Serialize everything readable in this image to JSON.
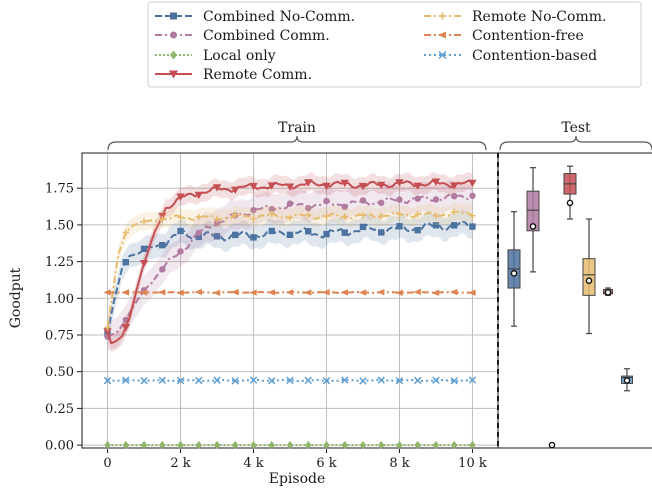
{
  "chart_data": {
    "type": "line",
    "xlabel": "Episode",
    "ylabel": "Goodput",
    "xlim": [
      -700,
      10700
    ],
    "ylim": [
      -0.02,
      1.99
    ],
    "xticks": [
      {
        "value": 0,
        "label": "0"
      },
      {
        "value": 2000,
        "label": "2 k"
      },
      {
        "value": 4000,
        "label": "4 k"
      },
      {
        "value": 6000,
        "label": "6 k"
      },
      {
        "value": 8000,
        "label": "8 k"
      },
      {
        "value": 10000,
        "label": "10 k"
      }
    ],
    "yticks": [
      {
        "value": 0,
        "label": "0.00"
      },
      {
        "value": 0.25,
        "label": "0.25"
      },
      {
        "value": 0.5,
        "label": "0.50"
      },
      {
        "value": 0.75,
        "label": "0.75"
      },
      {
        "value": 1.0,
        "label": "1.00"
      },
      {
        "value": 1.25,
        "label": "1.25"
      },
      {
        "value": 1.5,
        "label": "1.50"
      },
      {
        "value": 1.75,
        "label": "1.75"
      }
    ],
    "grid": true,
    "legend_position": "top-center",
    "brackets": [
      {
        "label": "Train"
      },
      {
        "label": "Test"
      }
    ],
    "series": [
      {
        "name": "Combined No-Comm.",
        "color": "#4c72a0",
        "dash": "7,3",
        "marker": "square",
        "x": [
          0,
          200,
          400,
          600,
          800,
          1000,
          1500,
          2000,
          3000,
          4000,
          5000,
          6000,
          7000,
          8000,
          9000,
          10000
        ],
        "y": [
          0.76,
          1.0,
          1.2,
          1.3,
          1.3,
          1.33,
          1.37,
          1.44,
          1.42,
          1.43,
          1.45,
          1.44,
          1.47,
          1.47,
          1.49,
          1.5
        ],
        "band": 0.08,
        "box": {
          "min": 0.81,
          "q1": 1.07,
          "median": 1.2,
          "q3": 1.33,
          "max": 1.59,
          "mean": 1.17
        }
      },
      {
        "name": "Combined Comm.",
        "color": "#b07aa1",
        "dash": "7,3,2,3",
        "marker": "circle",
        "x": [
          0,
          300,
          600,
          1000,
          1500,
          2000,
          2500,
          3000,
          4000,
          5000,
          6000,
          7000,
          8000,
          9000,
          10000
        ],
        "y": [
          0.73,
          0.78,
          0.9,
          1.05,
          1.2,
          1.32,
          1.44,
          1.52,
          1.6,
          1.63,
          1.64,
          1.65,
          1.67,
          1.68,
          1.7
        ],
        "band": 0.1,
        "box": {
          "min": 1.18,
          "q1": 1.46,
          "median": 1.6,
          "q3": 1.73,
          "max": 1.89,
          "mean": 1.49
        }
      },
      {
        "name": "Local only",
        "color": "#8fb56a",
        "dash": "2,2",
        "marker": "diamond",
        "x": [
          0,
          10000
        ],
        "y": [
          0.0,
          0.0
        ],
        "band": 0.0,
        "box": {
          "min": 0.0,
          "q1": 0.0,
          "median": 0.0,
          "q3": 0.0,
          "max": 0.0,
          "mean": 0.0
        }
      },
      {
        "name": "Remote Comm.",
        "color": "#c44e52",
        "dash": "",
        "marker": "triangle-down",
        "x": [
          0,
          100,
          250,
          400,
          600,
          800,
          1000,
          1300,
          1600,
          2000,
          2500,
          3000,
          4000,
          5000,
          6000,
          7000,
          8000,
          9000,
          10000
        ],
        "y": [
          0.78,
          0.7,
          0.7,
          0.74,
          0.86,
          1.07,
          1.24,
          1.45,
          1.62,
          1.68,
          1.72,
          1.74,
          1.76,
          1.77,
          1.78,
          1.77,
          1.78,
          1.78,
          1.78
        ],
        "band": 0.06,
        "box": {
          "min": 1.54,
          "q1": 1.71,
          "median": 1.78,
          "q3": 1.85,
          "max": 1.9,
          "mean": 1.65
        }
      },
      {
        "name": "Remote No-Comm.",
        "color": "#e5bc6e",
        "dash": "7,3,2,3",
        "marker": "plus",
        "x": [
          0,
          150,
          300,
          500,
          700,
          1000,
          1500,
          2000,
          3000,
          4000,
          5000,
          6000,
          7000,
          8000,
          9000,
          10000
        ],
        "y": [
          0.8,
          1.05,
          1.3,
          1.45,
          1.5,
          1.52,
          1.54,
          1.55,
          1.55,
          1.56,
          1.56,
          1.56,
          1.56,
          1.57,
          1.57,
          1.58
        ],
        "band": 0.06,
        "box": {
          "min": 0.76,
          "q1": 1.02,
          "median": 1.16,
          "q3": 1.27,
          "max": 1.54,
          "mean": 1.12
        }
      },
      {
        "name": "Contention-free",
        "color": "#dd8452",
        "dash": "7,3,2,3",
        "marker": "triangle-left",
        "x": [
          0,
          10000
        ],
        "y": [
          1.04,
          1.04
        ],
        "band": 0.0,
        "box": {
          "min": 1.02,
          "q1": 1.03,
          "median": 1.04,
          "q3": 1.06,
          "max": 1.07,
          "mean": 1.04
        }
      },
      {
        "name": "Contention-based",
        "color": "#5f9ed1",
        "dash": "2,3",
        "marker": "x",
        "x": [
          0,
          10000
        ],
        "y": [
          0.44,
          0.44
        ],
        "band": 0.0,
        "box": {
          "min": 0.37,
          "q1": 0.42,
          "median": 0.46,
          "q3": 0.47,
          "max": 0.52,
          "mean": 0.44
        }
      }
    ]
  }
}
